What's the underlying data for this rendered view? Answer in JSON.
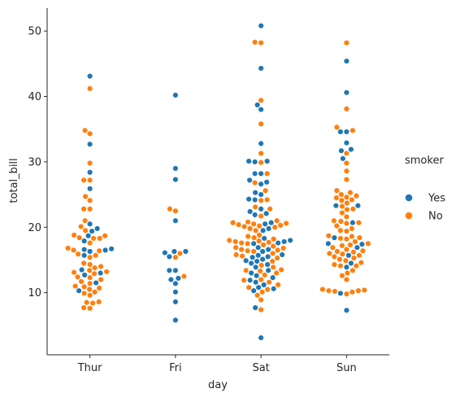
{
  "chart_data": {
    "type": "scatter",
    "subtype": "swarm",
    "categories": [
      "Thur",
      "Fri",
      "Sat",
      "Sun"
    ],
    "xlabel": "day",
    "ylabel": "total_bill",
    "ylim": [
      0.5,
      53.5
    ],
    "yticks": [
      10,
      20,
      30,
      40,
      50
    ],
    "grid": false,
    "legend": {
      "title": "smoker",
      "position": "right"
    },
    "series": [
      {
        "name": "Yes",
        "color": "#1f77b4",
        "points": {
          "Thur": [
            43.1,
            32.7,
            28.4,
            25.9,
            20.5,
            19.8,
            19.4,
            18.7,
            17.9,
            16.7,
            16.6,
            16.5,
            16.3,
            15.7,
            13.5,
            13.0,
            12.7,
            11.5,
            10.3
          ],
          "Fri": [
            40.2,
            29.0,
            27.3,
            21.0,
            16.3,
            16.3,
            16.1,
            15.5,
            13.4,
            13.4,
            12.2,
            12.0,
            11.4,
            10.1,
            8.6,
            5.8
          ],
          "Sat": [
            50.8,
            44.3,
            38.7,
            38.0,
            32.8,
            30.1,
            30.1,
            30.0,
            28.2,
            28.2,
            27.2,
            26.9,
            26.6,
            25.3,
            25.0,
            24.3,
            24.2,
            22.8,
            22.4,
            22.1,
            21.9,
            20.7,
            20.5,
            19.8,
            19.5,
            18.3,
            18.0,
            17.8,
            17.6,
            17.5,
            16.9,
            16.6,
            16.3,
            15.8,
            15.7,
            15.5,
            15.4,
            15.1,
            14.9,
            14.8,
            14.5,
            14.3,
            13.9,
            13.4,
            13.0,
            12.6,
            12.3,
            11.9,
            11.6,
            11.2,
            10.8,
            10.6,
            10.3,
            7.7,
            3.1
          ],
          "Sun": [
            45.4,
            40.6,
            34.6,
            34.6,
            32.9,
            31.9,
            31.7,
            30.5,
            23.3,
            23.3,
            20.7,
            18.4,
            17.5,
            17.4,
            16.9,
            15.7,
            14.5,
            13.9,
            9.9,
            7.3
          ]
        }
      },
      {
        "name": "No",
        "color": "#ff7f0e",
        "points": {
          "Thur": [
            41.2,
            34.8,
            34.3,
            29.8,
            27.2,
            27.2,
            24.7,
            24.1,
            22.8,
            22.8,
            21.0,
            20.1,
            19.5,
            18.8,
            18.7,
            18.4,
            18.3,
            18.3,
            17.6,
            16.8,
            16.5,
            16.4,
            15.9,
            15.7,
            15.4,
            14.5,
            14.3,
            14.0,
            13.8,
            13.4,
            13.2,
            13.1,
            12.9,
            12.4,
            12.3,
            12.0,
            11.7,
            11.4,
            11.0,
            10.9,
            10.7,
            10.5,
            10.1,
            9.9,
            9.6,
            8.6,
            8.5,
            8.4,
            7.7,
            7.6
          ],
          "Fri": [
            22.8,
            22.5,
            16.0,
            15.4,
            12.5
          ],
          "Sat": [
            48.3,
            48.2,
            39.4,
            35.8,
            31.3,
            29.9,
            28.2,
            26.8,
            25.6,
            24.2,
            24.1,
            23.1,
            22.8,
            21.7,
            21.0,
            20.8,
            20.7,
            20.6,
            20.5,
            20.4,
            20.3,
            20.2,
            20.1,
            20.0,
            19.8,
            19.5,
            18.8,
            18.6,
            18.4,
            18.2,
            18.0,
            17.9,
            17.8,
            17.7,
            17.6,
            17.5,
            17.3,
            17.1,
            16.9,
            16.8,
            16.6,
            16.5,
            16.4,
            16.3,
            16.0,
            15.8,
            15.6,
            15.3,
            14.8,
            14.2,
            13.9,
            13.5,
            13.4,
            13.3,
            13.0,
            12.7,
            12.0,
            11.9,
            11.6,
            11.2,
            10.8,
            10.5,
            10.1,
            9.6,
            8.9,
            7.4
          ],
          "Sun": [
            48.2,
            38.1,
            35.3,
            34.8,
            31.3,
            29.8,
            28.6,
            27.3,
            25.6,
            25.3,
            25.0,
            24.8,
            24.6,
            24.5,
            24.2,
            24.1,
            23.7,
            23.2,
            22.8,
            22.7,
            22.2,
            21.6,
            21.0,
            20.9,
            20.7,
            20.6,
            20.2,
            19.8,
            19.5,
            19.4,
            18.7,
            18.6,
            18.4,
            18.3,
            18.2,
            17.8,
            17.5,
            17.3,
            17.2,
            16.9,
            16.6,
            16.4,
            16.3,
            16.2,
            16.0,
            15.9,
            15.7,
            15.5,
            15.3,
            15.1,
            14.9,
            14.6,
            14.3,
            14.1,
            14.1,
            13.4,
            13.0,
            12.6,
            12.0,
            10.5,
            10.4,
            10.3,
            10.3,
            10.2,
            10.1,
            9.8
          ]
        }
      }
    ]
  }
}
